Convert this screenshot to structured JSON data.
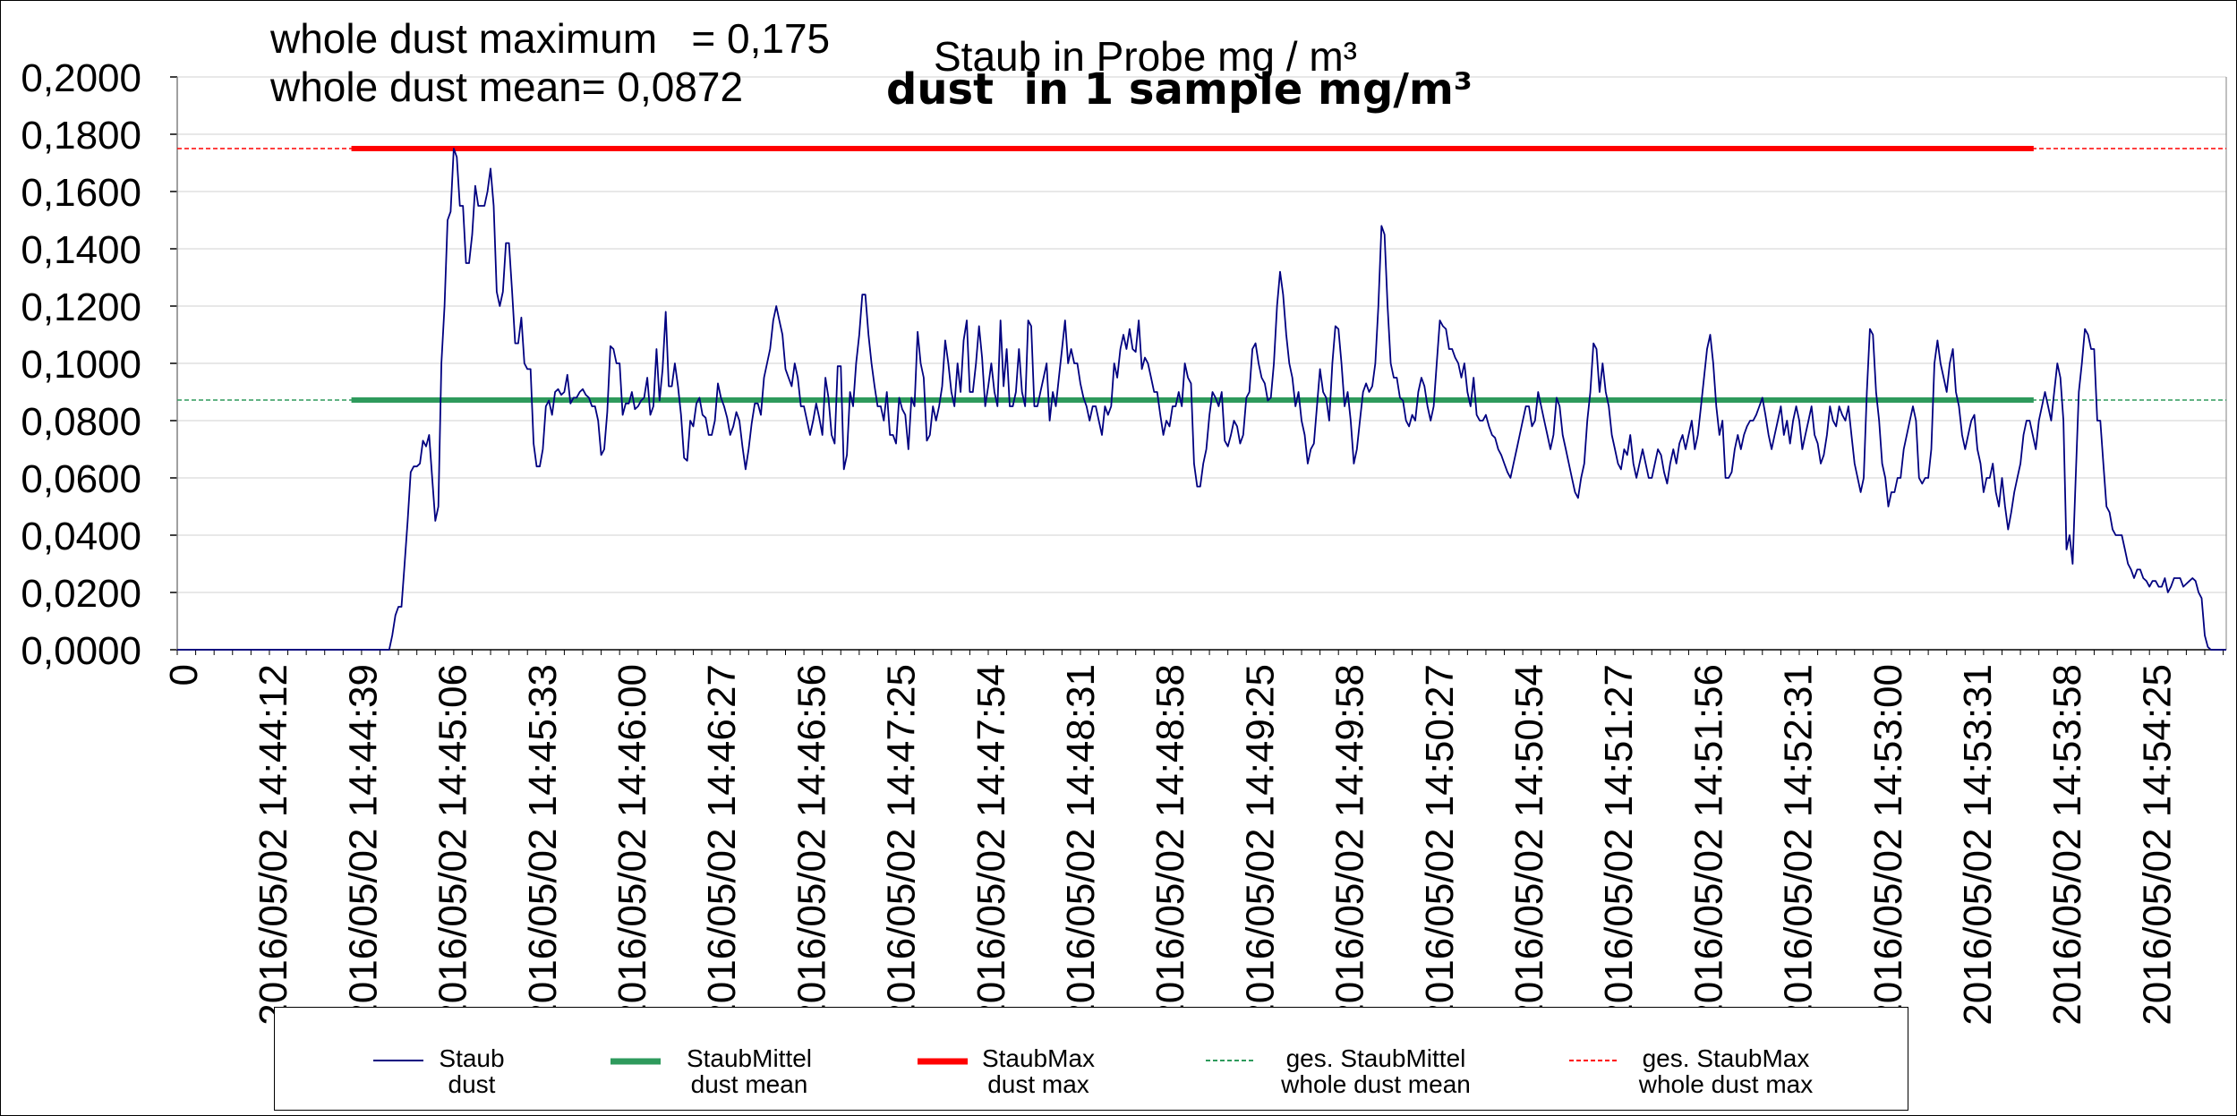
{
  "header": {
    "stat_max": "whole dust maximum   = 0,175",
    "stat_mean": "whole dust mean= 0,0872",
    "title_de": "Staub in Probe mg / m³",
    "title_en": "dust  in 1 sample mg/m³"
  },
  "legend": {
    "items": [
      {
        "line1": "Staub",
        "line2": "dust",
        "color": "#000080",
        "style": "solid-thin"
      },
      {
        "line1": "StaubMittel",
        "line2": "dust mean",
        "color": "#2e9a5c",
        "style": "solid-thick"
      },
      {
        "line1": "StaubMax",
        "line2": "dust max",
        "color": "#ff0000",
        "style": "solid-thick"
      },
      {
        "line1": "ges. StaubMittel",
        "line2": "whole dust mean",
        "color": "#2e9a5c",
        "style": "dashed"
      },
      {
        "line1": "ges. StaubMax",
        "line2": "whole dust max",
        "color": "#ff0000",
        "style": "dashed"
      }
    ]
  },
  "chart_data": {
    "type": "line",
    "title": "Staub in Probe mg / m³ / dust  in 1 sample mg/m³",
    "ylim": [
      0,
      0.2
    ],
    "yticks": [
      "0,0000",
      "0,0200",
      "0,0400",
      "0,0600",
      "0,0800",
      "0,1000",
      "0,1200",
      "0,1400",
      "0,1600",
      "0,1800",
      "0,2000"
    ],
    "grid": true,
    "legend_position": "bottom",
    "xticks": [
      "0",
      "2016/05/02 14:44:12",
      "2016/05/02 14:44:39",
      "2016/05/02 14:45:06",
      "2016/05/02 14:45:33",
      "2016/05/02 14:46:00",
      "2016/05/02 14:46:27",
      "2016/05/02 14:46:56",
      "2016/05/02 14:47:25",
      "2016/05/02 14:47:54",
      "2016/05/02 14:48:31",
      "2016/05/02 14:48:58",
      "2016/05/02 14:49:25",
      "2016/05/02 14:49:58",
      "2016/05/02 14:50:27",
      "2016/05/02 14:50:54",
      "2016/05/02 14:51:27",
      "2016/05/02 14:51:56",
      "2016/05/02 14:52:31",
      "2016/05/02 14:53:00",
      "2016/05/02 14:53:31",
      "2016/05/02 14:53:58",
      "2016/05/02 14:54:25"
    ],
    "series": [
      {
        "name": "Staub dust",
        "color": "#000080",
        "values": [
          0,
          0,
          0,
          0,
          0,
          0,
          0,
          0,
          0,
          0,
          0,
          0,
          0,
          0,
          0,
          0,
          0,
          0,
          0,
          0,
          0,
          0,
          0,
          0,
          0,
          0,
          0,
          0,
          0,
          0,
          0,
          0,
          0,
          0,
          0,
          0,
          0,
          0,
          0,
          0,
          0,
          0,
          0,
          0,
          0,
          0,
          0,
          0,
          0,
          0,
          0,
          0,
          0,
          0,
          0,
          0,
          0,
          0,
          0,
          0,
          0,
          0,
          0,
          0,
          0,
          0,
          0,
          0,
          0,
          0,
          0.005,
          0.012,
          0.015,
          0.015,
          0.03,
          0.045,
          0.062,
          0.064,
          0.064,
          0.065,
          0.073,
          0.071,
          0.075,
          0.06,
          0.045,
          0.05,
          0.1,
          0.12,
          0.15,
          0.153,
          0.175,
          0.172,
          0.155,
          0.155,
          0.135,
          0.135,
          0.145,
          0.162,
          0.155,
          0.155,
          0.155,
          0.16,
          0.168,
          0.155,
          0.125,
          0.12,
          0.125,
          0.142,
          0.142,
          0.125,
          0.107,
          0.107,
          0.116,
          0.1,
          0.098,
          0.098,
          0.072,
          0.064,
          0.064,
          0.07,
          0.085,
          0.087,
          0.082,
          0.09,
          0.091,
          0.089,
          0.09,
          0.096,
          0.086,
          0.088,
          0.088,
          0.09,
          0.091,
          0.089,
          0.088,
          0.085,
          0.085,
          0.08,
          0.068,
          0.07,
          0.083,
          0.106,
          0.105,
          0.1,
          0.1,
          0.082,
          0.086,
          0.086,
          0.09,
          0.084,
          0.085,
          0.087,
          0.088,
          0.095,
          0.082,
          0.085,
          0.105,
          0.087,
          0.098,
          0.118,
          0.092,
          0.092,
          0.1,
          0.092,
          0.082,
          0.067,
          0.066,
          0.08,
          0.078,
          0.086,
          0.088,
          0.082,
          0.081,
          0.075,
          0.075,
          0.08,
          0.093,
          0.088,
          0.085,
          0.081,
          0.075,
          0.078,
          0.083,
          0.08,
          0.071,
          0.063,
          0.07,
          0.079,
          0.086,
          0.086,
          0.082,
          0.095,
          0.1,
          0.105,
          0.115,
          0.12,
          0.115,
          0.11,
          0.098,
          0.095,
          0.092,
          0.1,
          0.095,
          0.085,
          0.085,
          0.08,
          0.075,
          0.08,
          0.086,
          0.081,
          0.075,
          0.095,
          0.088,
          0.075,
          0.072,
          0.099,
          0.099,
          0.063,
          0.068,
          0.09,
          0.085,
          0.1,
          0.11,
          0.124,
          0.124,
          0.11,
          0.1,
          0.092,
          0.085,
          0.085,
          0.08,
          0.09,
          0.075,
          0.075,
          0.072,
          0.088,
          0.084,
          0.082,
          0.07,
          0.088,
          0.085,
          0.111,
          0.1,
          0.095,
          0.073,
          0.075,
          0.085,
          0.08,
          0.085,
          0.092,
          0.108,
          0.1,
          0.09,
          0.085,
          0.1,
          0.09,
          0.108,
          0.115,
          0.09,
          0.09,
          0.1,
          0.113,
          0.102,
          0.085,
          0.092,
          0.1,
          0.09,
          0.085,
          0.115,
          0.092,
          0.105,
          0.085,
          0.085,
          0.09,
          0.105,
          0.09,
          0.085,
          0.115,
          0.113,
          0.085,
          0.085,
          0.09,
          0.095,
          0.1,
          0.08,
          0.09,
          0.085,
          0.095,
          0.105,
          0.115,
          0.1,
          0.105,
          0.1,
          0.1,
          0.093,
          0.088,
          0.085,
          0.08,
          0.085,
          0.085,
          0.08,
          0.075,
          0.085,
          0.082,
          0.085,
          0.1,
          0.095,
          0.105,
          0.11,
          0.105,
          0.112,
          0.105,
          0.104,
          0.115,
          0.098,
          0.102,
          0.1,
          0.095,
          0.09,
          0.09,
          0.082,
          0.075,
          0.08,
          0.078,
          0.085,
          0.085,
          0.09,
          0.085,
          0.1,
          0.095,
          0.093,
          0.065,
          0.057,
          0.057,
          0.065,
          0.07,
          0.082,
          0.09,
          0.088,
          0.085,
          0.09,
          0.073,
          0.071,
          0.075,
          0.08,
          0.078,
          0.072,
          0.075,
          0.088,
          0.09,
          0.105,
          0.107,
          0.1,
          0.095,
          0.093,
          0.087,
          0.088,
          0.1,
          0.12,
          0.132,
          0.124,
          0.11,
          0.1,
          0.095,
          0.085,
          0.09,
          0.08,
          0.075,
          0.065,
          0.07,
          0.072,
          0.085,
          0.098,
          0.09,
          0.088,
          0.08,
          0.1,
          0.113,
          0.112,
          0.1,
          0.085,
          0.09,
          0.08,
          0.065,
          0.07,
          0.08,
          0.09,
          0.093,
          0.09,
          0.092,
          0.1,
          0.12,
          0.148,
          0.145,
          0.12,
          0.1,
          0.095,
          0.095,
          0.088,
          0.087,
          0.08,
          0.078,
          0.082,
          0.08,
          0.09,
          0.095,
          0.092,
          0.085,
          0.08,
          0.085,
          0.1,
          0.115,
          0.113,
          0.112,
          0.105,
          0.105,
          0.102,
          0.1,
          0.095,
          0.1,
          0.09,
          0.085,
          0.095,
          0.082,
          0.08,
          0.08,
          0.082,
          0.078,
          0.075,
          0.074,
          0.07,
          0.068,
          0.065,
          0.062,
          0.06,
          0.065,
          0.07,
          0.075,
          0.08,
          0.085,
          0.085,
          0.078,
          0.08,
          0.09,
          0.085,
          0.08,
          0.075,
          0.07,
          0.075,
          0.088,
          0.085,
          0.075,
          0.07,
          0.065,
          0.06,
          0.055,
          0.053,
          0.06,
          0.065,
          0.08,
          0.09,
          0.107,
          0.105,
          0.09,
          0.1,
          0.09,
          0.085,
          0.075,
          0.07,
          0.065,
          0.063,
          0.07,
          0.068,
          0.075,
          0.065,
          0.06,
          0.065,
          0.07,
          0.065,
          0.06,
          0.06,
          0.065,
          0.07,
          0.068,
          0.062,
          0.058,
          0.065,
          0.07,
          0.065,
          0.072,
          0.075,
          0.07,
          0.075,
          0.08,
          0.07,
          0.075,
          0.085,
          0.095,
          0.105,
          0.11,
          0.1,
          0.085,
          0.075,
          0.08,
          0.06,
          0.06,
          0.062,
          0.07,
          0.075,
          0.07,
          0.075,
          0.078,
          0.08,
          0.08,
          0.082,
          0.085,
          0.088,
          0.082,
          0.075,
          0.07,
          0.075,
          0.08,
          0.085,
          0.075,
          0.08,
          0.072,
          0.08,
          0.085,
          0.08,
          0.07,
          0.075,
          0.08,
          0.085,
          0.075,
          0.072,
          0.065,
          0.068,
          0.075,
          0.085,
          0.08,
          0.078,
          0.085,
          0.082,
          0.08,
          0.085,
          0.075,
          0.065,
          0.06,
          0.055,
          0.06,
          0.09,
          0.112,
          0.11,
          0.09,
          0.08,
          0.065,
          0.06,
          0.05,
          0.055,
          0.055,
          0.06,
          0.06,
          0.07,
          0.075,
          0.08,
          0.085,
          0.08,
          0.06,
          0.058,
          0.06,
          0.06,
          0.07,
          0.1,
          0.108,
          0.1,
          0.095,
          0.09,
          0.1,
          0.105,
          0.09,
          0.085,
          0.075,
          0.07,
          0.075,
          0.08,
          0.082,
          0.07,
          0.065,
          0.055,
          0.06,
          0.06,
          0.065,
          0.055,
          0.05,
          0.06,
          0.05,
          0.042,
          0.048,
          0.055,
          0.06,
          0.065,
          0.075,
          0.08,
          0.08,
          0.075,
          0.07,
          0.08,
          0.085,
          0.09,
          0.085,
          0.08,
          0.09,
          0.1,
          0.095,
          0.08,
          0.035,
          0.04,
          0.03,
          0.06,
          0.09,
          0.1,
          0.112,
          0.11,
          0.105,
          0.105,
          0.08,
          0.08,
          0.065,
          0.05,
          0.048,
          0.042,
          0.04,
          0.04,
          0.04,
          0.035,
          0.03,
          0.028,
          0.025,
          0.028,
          0.028,
          0.025,
          0.024,
          0.022,
          0.024,
          0.024,
          0.022,
          0.022,
          0.025,
          0.02,
          0.022,
          0.025,
          0.025,
          0.025,
          0.022,
          0.023,
          0.024,
          0.025,
          0.024,
          0.02,
          0.018,
          0.005,
          0.001,
          0,
          0,
          0,
          0,
          0,
          0
        ]
      },
      {
        "name": "StaubMittel dust mean",
        "color": "#2e9a5c",
        "value": 0.0872,
        "x_start_frac": 0.085,
        "x_end_frac": 0.906
      },
      {
        "name": "StaubMax dust max",
        "color": "#ff0000",
        "value": 0.175,
        "x_start_frac": 0.085,
        "x_end_frac": 0.906
      },
      {
        "name": "ges. StaubMittel whole dust mean",
        "color": "#2e9a5c",
        "value": 0.0872,
        "style": "dashed"
      },
      {
        "name": "ges. StaubMax whole dust max",
        "color": "#ff0000",
        "value": 0.175,
        "style": "dashed"
      }
    ]
  }
}
